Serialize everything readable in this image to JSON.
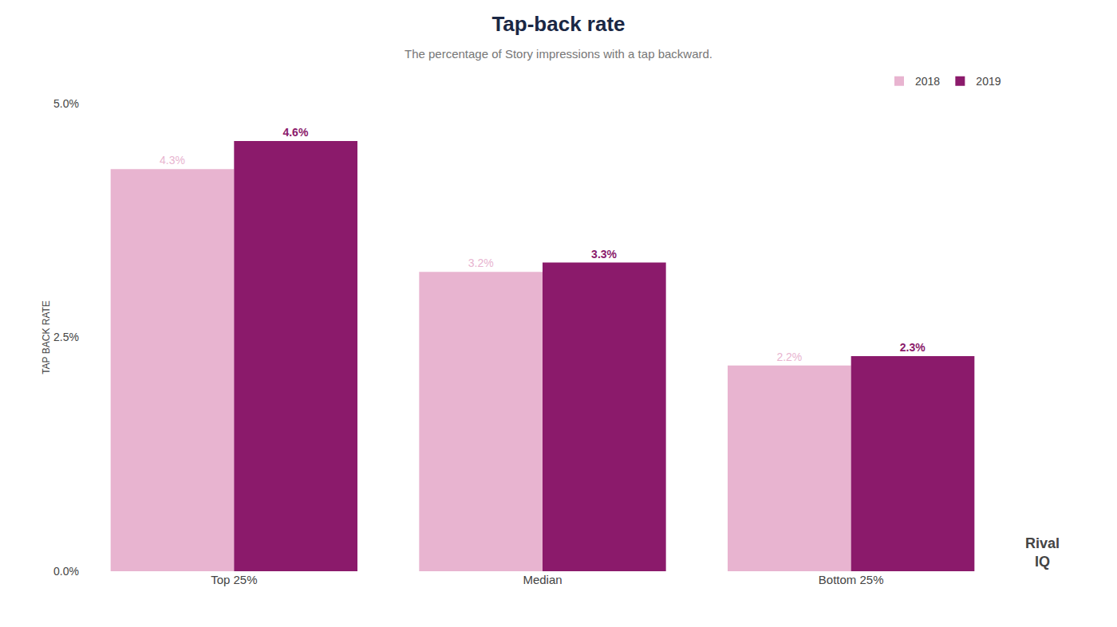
{
  "chart_data": {
    "type": "bar",
    "title": "Tap-back rate",
    "subtitle": "The percentage of Story impressions with a tap backward.",
    "categories": [
      "Top 25%",
      "Median",
      "Bottom 25%"
    ],
    "series": [
      {
        "name": "2018",
        "color": "#e8b4d0",
        "values": [
          0.043,
          0.032,
          0.022
        ],
        "value_labels": [
          "4.3%",
          "3.2%",
          "2.2%"
        ]
      },
      {
        "name": "2019",
        "color": "#8b1a6b",
        "values": [
          0.046,
          0.033,
          0.023
        ],
        "value_labels": [
          "4.6%",
          "3.3%",
          "2.3%"
        ]
      }
    ],
    "ylabel": "TAP BACK RATE",
    "ylim": [
      0,
      0.05
    ],
    "yticks": [
      {
        "value": 0,
        "label": "0.0%"
      },
      {
        "value": 0.025,
        "label": "2.5%"
      },
      {
        "value": 0.05,
        "label": "5.0%"
      }
    ],
    "grid": false,
    "legend": "upper right",
    "data_labels": true,
    "annotations": [
      "Rival",
      "IQ"
    ]
  }
}
